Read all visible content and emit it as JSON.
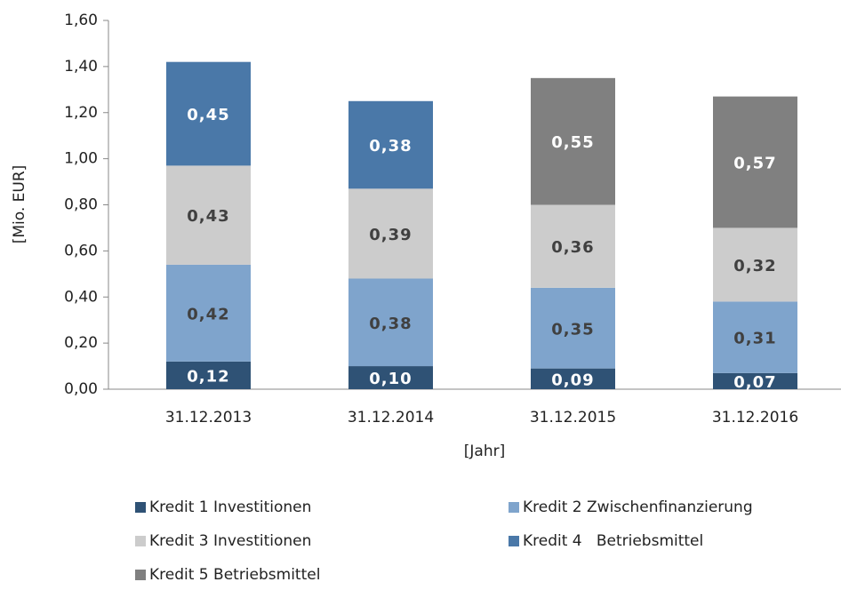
{
  "chart_data": {
    "type": "stacked_bar",
    "categories": [
      "31.12.2013",
      "31.12.2014",
      "31.12.2015",
      "31.12.2016"
    ],
    "series": [
      {
        "name": "Kredit 1 Investitionen",
        "color": "#2f5275",
        "label_color": "#ffffff",
        "values": [
          0.12,
          0.1,
          0.09,
          0.07
        ],
        "value_labels": [
          "0,12",
          "0,10",
          "0,09",
          "0,07"
        ]
      },
      {
        "name": "Kredit 2 Zwischenfinanzierung",
        "color": "#7fa4cc",
        "label_color": "#404040",
        "values": [
          0.42,
          0.38,
          0.35,
          0.31
        ],
        "value_labels": [
          "0,42",
          "0,38",
          "0,35",
          "0,31"
        ]
      },
      {
        "name": "Kredit 3 Investitionen",
        "color": "#cccccc",
        "label_color": "#404040",
        "values": [
          0.43,
          0.39,
          0.36,
          0.32
        ],
        "value_labels": [
          "0,43",
          "0,39",
          "0,36",
          "0,32"
        ]
      },
      {
        "name": "Kredit 4   Betriebsmittel",
        "color": "#4a78a8",
        "label_color": "#ffffff",
        "values": [
          0.45,
          0.38,
          null,
          null
        ],
        "value_labels": [
          "0,45",
          "0,38",
          null,
          null
        ]
      },
      {
        "name": "Kredit 5 Betriebsmittel",
        "color": "#808080",
        "label_color": "#ffffff",
        "values": [
          null,
          null,
          0.55,
          0.57
        ],
        "value_labels": [
          null,
          null,
          "0,55",
          "0,57"
        ]
      }
    ],
    "x_label": "[Jahr]",
    "y_label": "[Mio. EUR]",
    "ylim": [
      0,
      1.6
    ],
    "yticks": [
      {
        "value": 0,
        "label": "0,00"
      },
      {
        "value": 0.2,
        "label": "0,20"
      },
      {
        "value": 0.4,
        "label": "0,40"
      },
      {
        "value": 0.6,
        "label": "0,60"
      },
      {
        "value": 0.8,
        "label": "0,80"
      },
      {
        "value": 1.0,
        "label": "1,00"
      },
      {
        "value": 1.2,
        "label": "1,20"
      },
      {
        "value": 1.4,
        "label": "1,40"
      },
      {
        "value": 1.6,
        "label": "1,60"
      }
    ],
    "grid": false,
    "legend": "bottom"
  }
}
